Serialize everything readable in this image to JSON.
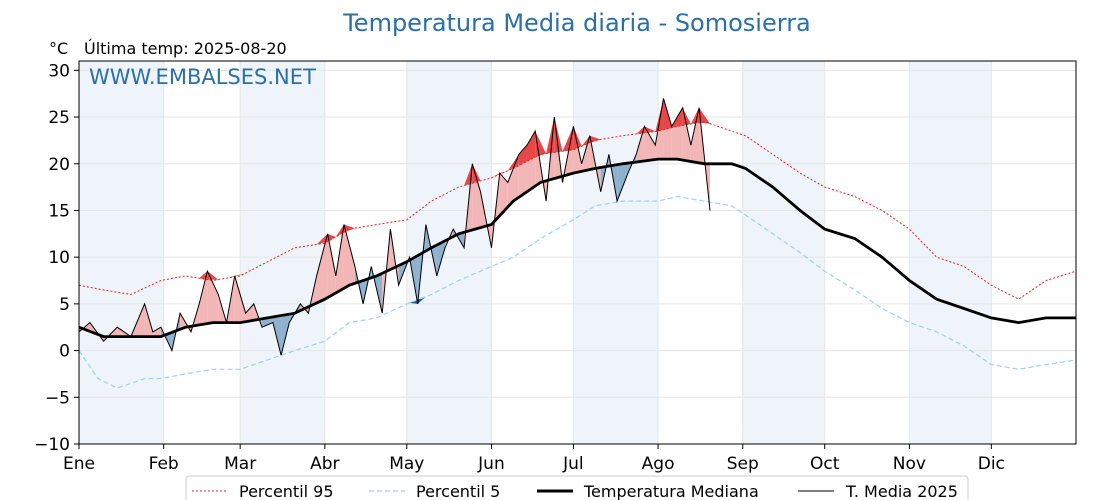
{
  "header": {
    "title": "Temperatura Media diaria - Somosierra",
    "unit": "°C",
    "last_temp": "Última temp: 2025-08-20",
    "watermark": "WWW.EMBALSES.NET"
  },
  "colors": {
    "p95": "#e0231f",
    "p5": "#9fd3df",
    "median": "#000000",
    "current": "#000000",
    "warm_fill": "#f3b6b6",
    "warm_strong": "#e8474a",
    "cold_fill": "#8eb1cf",
    "cold_strong": "#1f5d9b",
    "band": "#eef4fa"
  },
  "chart_data": {
    "type": "line",
    "title": "Temperatura Media diaria - Somosierra",
    "ylabel": "°C",
    "ylim": [
      -10,
      31
    ],
    "yticks": [
      -10,
      -5,
      0,
      5,
      10,
      15,
      20,
      25,
      30
    ],
    "ytick_labels": [
      "−10",
      "−5",
      "0",
      "5",
      "10",
      "15",
      "20",
      "25",
      "30"
    ],
    "xlim": [
      1,
      366
    ],
    "month_labels": [
      "Ene",
      "Feb",
      "Mar",
      "Abr",
      "May",
      "Jun",
      "Jul",
      "Ago",
      "Sep",
      "Oct",
      "Nov",
      "Dic"
    ],
    "month_start_days": [
      1,
      32,
      60,
      91,
      121,
      152,
      182,
      213,
      244,
      274,
      305,
      335
    ],
    "grid": true,
    "legend_position": "bottom",
    "series": [
      {
        "name": "Percentil 95",
        "style": "dotted-red",
        "x": [
          1,
          10,
          20,
          31,
          40,
          50,
          60,
          70,
          80,
          91,
          100,
          110,
          121,
          130,
          140,
          152,
          160,
          170,
          182,
          190,
          200,
          213,
          220,
          230,
          240,
          245,
          255,
          265,
          274,
          285,
          295,
          305,
          315,
          325,
          335,
          345,
          355,
          366
        ],
        "y": [
          7,
          6.5,
          6,
          7.5,
          8,
          7.5,
          8,
          9.5,
          11,
          11.5,
          13,
          13.5,
          14,
          16,
          17.5,
          18.5,
          19.5,
          21,
          21.5,
          22.5,
          23,
          23.5,
          24,
          24.5,
          23.5,
          23,
          21,
          19,
          17.5,
          16.5,
          15,
          13,
          10,
          9,
          7,
          5.5,
          7.5,
          8.5
        ]
      },
      {
        "name": "Percentil 5",
        "style": "dashed-lightblue",
        "x": [
          1,
          8,
          15,
          25,
          31,
          40,
          50,
          60,
          70,
          80,
          91,
          100,
          110,
          121,
          130,
          140,
          152,
          160,
          170,
          182,
          190,
          200,
          213,
          220,
          230,
          240,
          245,
          255,
          265,
          274,
          285,
          295,
          305,
          315,
          325,
          335,
          345,
          355,
          366
        ],
        "y": [
          0,
          -3,
          -4,
          -3,
          -3,
          -2.5,
          -2,
          -2,
          -1,
          0,
          1,
          3,
          3.5,
          5,
          6,
          7.5,
          9,
          10,
          12,
          14,
          15.5,
          16,
          16,
          16.5,
          16,
          15.5,
          14.5,
          12.5,
          10.5,
          8.5,
          6.5,
          4.5,
          3,
          2,
          0.5,
          -1.5,
          -2,
          -1.5,
          -1
        ]
      },
      {
        "name": "Temperatura Mediana",
        "style": "thick-black",
        "x": [
          1,
          10,
          20,
          31,
          40,
          50,
          60,
          70,
          80,
          91,
          100,
          110,
          121,
          130,
          140,
          152,
          160,
          170,
          182,
          190,
          200,
          213,
          220,
          230,
          240,
          245,
          255,
          265,
          274,
          285,
          295,
          305,
          315,
          325,
          335,
          345,
          355,
          366
        ],
        "y": [
          2.5,
          1.5,
          1.5,
          1.5,
          2.5,
          3,
          3,
          3.5,
          4,
          5.5,
          7,
          8,
          9.5,
          11,
          12.5,
          13.5,
          16,
          18,
          19,
          19.5,
          20,
          20.5,
          20.5,
          20,
          20,
          19.5,
          17.5,
          15,
          13,
          12,
          10,
          7.5,
          5.5,
          4.5,
          3.5,
          3,
          3.5,
          3.5
        ]
      },
      {
        "name": "T. Media 2025",
        "style": "thin-black",
        "x": [
          1,
          5,
          10,
          15,
          20,
          25,
          28,
          31,
          35,
          38,
          42,
          45,
          48,
          52,
          55,
          58,
          62,
          65,
          68,
          72,
          75,
          78,
          82,
          85,
          88,
          92,
          95,
          98,
          102,
          105,
          108,
          112,
          115,
          118,
          122,
          125,
          128,
          132,
          135,
          138,
          142,
          145,
          148,
          152,
          155,
          158,
          162,
          165,
          168,
          172,
          175,
          178,
          182,
          185,
          188,
          192,
          195,
          198,
          202,
          205,
          208,
          212,
          215,
          218,
          222,
          225,
          228,
          232
        ],
        "y": [
          2,
          3,
          1,
          2.5,
          1.5,
          5,
          2,
          2.5,
          0,
          4,
          2,
          5,
          8.5,
          6,
          3,
          8,
          4,
          5,
          2.5,
          3,
          -0.5,
          3,
          5,
          4,
          8,
          12.5,
          8,
          13.5,
          9,
          5,
          9,
          4,
          13,
          7,
          10,
          5,
          13.5,
          8,
          11,
          13,
          11,
          20,
          17,
          11,
          19,
          18,
          21,
          22,
          23.5,
          16,
          25,
          18,
          24,
          20,
          23,
          17,
          21,
          16,
          19,
          21,
          24,
          22,
          27,
          24,
          26,
          22,
          26,
          15
        ]
      }
    ]
  },
  "legend": {
    "items": [
      {
        "label": "Percentil 95"
      },
      {
        "label": "Percentil 5"
      },
      {
        "label": "Temperatura Mediana"
      },
      {
        "label": "T. Media 2025"
      }
    ]
  }
}
